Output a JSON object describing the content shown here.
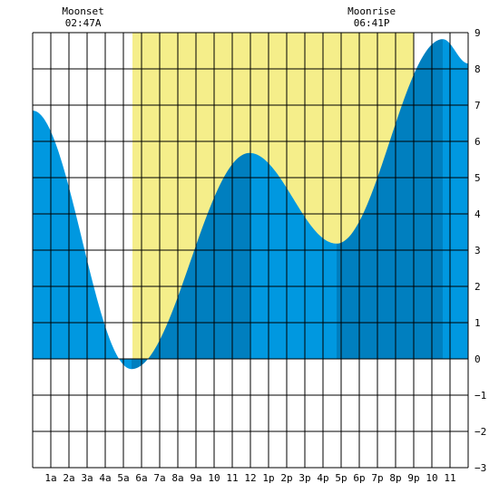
{
  "chart_data": {
    "type": "area",
    "x_unit": "hour",
    "xlim": [
      0,
      24
    ],
    "ylim": [
      -3,
      9
    ],
    "x_tick_labels": [
      "1a",
      "2a",
      "3a",
      "4a",
      "5a",
      "6a",
      "7a",
      "8a",
      "9a",
      "10",
      "11",
      "12",
      "1p",
      "2p",
      "3p",
      "4p",
      "5p",
      "6p",
      "7p",
      "8p",
      "9p",
      "10",
      "11"
    ],
    "y_tick_labels": [
      "9",
      "8",
      "7",
      "6",
      "5",
      "4",
      "3",
      "2",
      "1",
      "0",
      "−1",
      "−2",
      "−3"
    ],
    "grid": true,
    "daylight": {
      "start": 5.5,
      "end": 21.0
    },
    "events": [
      {
        "label": "Moonset",
        "time": "02:47A",
        "x": 2.78
      },
      {
        "label": "Moonrise",
        "time": "06:41P",
        "x": 18.68
      }
    ],
    "tide": {
      "extremes": [
        {
          "x": 0.0,
          "y": 6.85
        },
        {
          "x": 5.45,
          "y": -0.28
        },
        {
          "x": 11.95,
          "y": 5.68
        },
        {
          "x": 16.75,
          "y": 3.18
        },
        {
          "x": 22.6,
          "y": 8.82
        },
        {
          "x": 24.0,
          "y": 8.15
        }
      ],
      "stages": [
        {
          "from": 0,
          "to": 5.45,
          "stage": "falling"
        },
        {
          "from": 5.45,
          "to": 11.95,
          "stage": "rising"
        },
        {
          "from": 11.95,
          "to": 16.75,
          "stage": "falling"
        },
        {
          "from": 16.75,
          "to": 22.6,
          "stage": "rising"
        },
        {
          "from": 22.6,
          "to": 24.0,
          "stage": "falling"
        }
      ]
    },
    "colors": {
      "falling": "#0098e0",
      "rising": "#007fbf",
      "daylight": "#f5ee8a",
      "background": "#ffffff",
      "grid": "#000000"
    }
  }
}
